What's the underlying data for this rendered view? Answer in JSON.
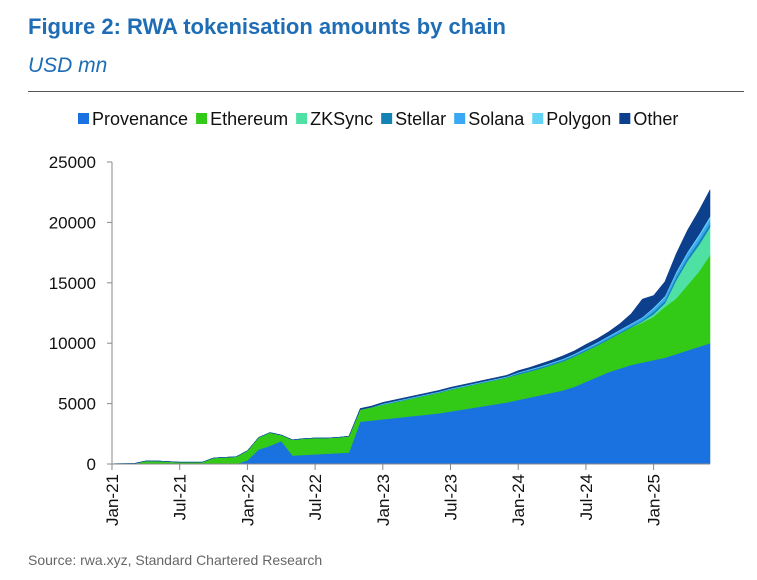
{
  "header": {
    "title": "Figure 2: RWA tokenisation amounts by chain",
    "subtitle": "USD mn"
  },
  "footer": {
    "source": "Source: rwa.xyz, Standard Chartered Research"
  },
  "chart_data": {
    "type": "area",
    "stacked": true,
    "title": "Figure 2: RWA tokenisation amounts by chain",
    "ylabel": "USD mn",
    "xlabel": "",
    "ylim": [
      0,
      25000
    ],
    "yticks": [
      0,
      5000,
      10000,
      15000,
      20000,
      25000
    ],
    "xtick_labels": [
      "Jan-21",
      "Jul-21",
      "Jan-22",
      "Jul-22",
      "Jan-23",
      "Jul-23",
      "Jan-24",
      "Jul-24",
      "Jan-25"
    ],
    "x_start": "Jan-21",
    "x_end": "Jun-25",
    "x_step": "month",
    "legend_position": "top",
    "grid": false,
    "series": [
      {
        "name": "Provenance",
        "color": "#1a72e0",
        "values": [
          0,
          0,
          0,
          0,
          0,
          0,
          0,
          0,
          0,
          0,
          0,
          0,
          300,
          1200,
          1500,
          1900,
          700,
          750,
          800,
          850,
          900,
          950,
          3500,
          3600,
          3700,
          3800,
          3900,
          4000,
          4100,
          4200,
          4350,
          4500,
          4650,
          4800,
          4950,
          5100,
          5300,
          5500,
          5700,
          5900,
          6100,
          6400,
          6800,
          7200,
          7600,
          7900,
          8200,
          8400,
          8600,
          8800,
          9100,
          9400,
          9700,
          10000
        ]
      },
      {
        "name": "Ethereum",
        "color": "#33c917",
        "values": [
          20,
          30,
          50,
          250,
          250,
          200,
          150,
          150,
          150,
          500,
          550,
          600,
          800,
          1000,
          1100,
          500,
          1300,
          1350,
          1350,
          1300,
          1300,
          1350,
          1000,
          1100,
          1200,
          1300,
          1400,
          1500,
          1600,
          1700,
          1800,
          1850,
          1900,
          1950,
          2000,
          2050,
          2100,
          2150,
          2200,
          2300,
          2400,
          2500,
          2550,
          2600,
          2700,
          2900,
          3100,
          3300,
          3600,
          4200,
          4600,
          5400,
          6200,
          7300
        ]
      },
      {
        "name": "ZKSync",
        "color": "#4fe0a3",
        "values": [
          0,
          0,
          0,
          0,
          0,
          0,
          0,
          0,
          0,
          0,
          0,
          0,
          0,
          0,
          0,
          0,
          0,
          0,
          0,
          0,
          0,
          0,
          0,
          0,
          0,
          0,
          0,
          0,
          0,
          0,
          0,
          0,
          0,
          0,
          0,
          0,
          0,
          0,
          0,
          0,
          0,
          0,
          0,
          0,
          0,
          0,
          0,
          100,
          200,
          300,
          1500,
          2000,
          2200,
          2300
        ]
      },
      {
        "name": "Stellar",
        "color": "#1482b5",
        "values": [
          0,
          0,
          0,
          0,
          0,
          0,
          0,
          0,
          0,
          0,
          0,
          0,
          0,
          0,
          0,
          0,
          0,
          0,
          0,
          0,
          0,
          0,
          0,
          0,
          50,
          50,
          50,
          50,
          50,
          50,
          50,
          50,
          50,
          50,
          50,
          50,
          100,
          100,
          100,
          100,
          100,
          100,
          100,
          100,
          100,
          100,
          100,
          100,
          200,
          200,
          250,
          250,
          300,
          300
        ]
      },
      {
        "name": "Solana",
        "color": "#3aa8f2",
        "values": [
          0,
          0,
          0,
          0,
          0,
          0,
          0,
          0,
          0,
          0,
          0,
          0,
          0,
          0,
          0,
          0,
          0,
          0,
          0,
          0,
          0,
          0,
          0,
          0,
          0,
          0,
          0,
          0,
          0,
          0,
          0,
          0,
          0,
          0,
          0,
          0,
          30,
          40,
          50,
          60,
          70,
          80,
          100,
          120,
          140,
          160,
          180,
          200,
          250,
          300,
          300,
          350,
          350,
          400
        ]
      },
      {
        "name": "Polygon",
        "color": "#63d4f6",
        "values": [
          0,
          0,
          0,
          0,
          0,
          0,
          0,
          0,
          0,
          0,
          0,
          0,
          0,
          0,
          0,
          0,
          0,
          0,
          0,
          0,
          0,
          0,
          0,
          0,
          50,
          50,
          50,
          50,
          50,
          50,
          50,
          50,
          50,
          50,
          50,
          50,
          50,
          50,
          50,
          50,
          50,
          50,
          50,
          50,
          50,
          50,
          50,
          50,
          100,
          100,
          150,
          150,
          200,
          200
        ]
      },
      {
        "name": "Other",
        "color": "#0c3f8c",
        "values": [
          0,
          0,
          0,
          0,
          0,
          0,
          0,
          0,
          0,
          0,
          0,
          0,
          0,
          0,
          0,
          0,
          0,
          0,
          0,
          0,
          0,
          0,
          100,
          100,
          100,
          100,
          100,
          100,
          100,
          100,
          100,
          100,
          100,
          100,
          100,
          100,
          150,
          150,
          200,
          200,
          250,
          250,
          300,
          300,
          350,
          500,
          800,
          1500,
          1000,
          1200,
          1500,
          1800,
          2000,
          2200
        ]
      }
    ]
  }
}
